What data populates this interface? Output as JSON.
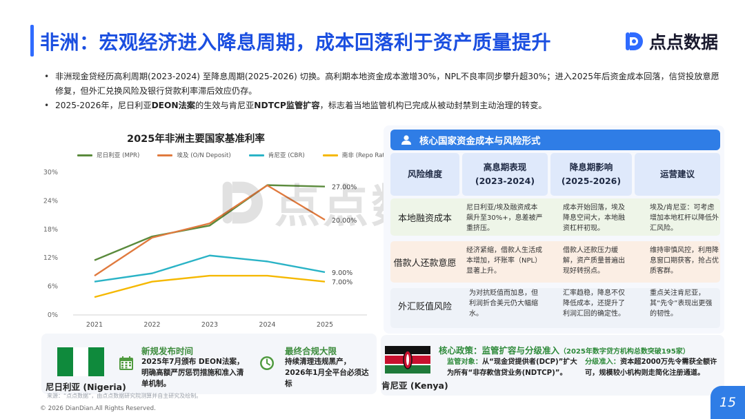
{
  "header": {
    "title": "非洲：宏观经济进入降息周期，成本回落利于资产质量提升",
    "logo_text": "点点数据",
    "accent_color": "#1b4fe0"
  },
  "bullets": [
    {
      "pre": "非洲现金贷经历高利周期(2023-2024) 至降息周期(2025-2026) 切换。高利期本地资金成本激增30%，NPL不良率同步攀升超30%；进入2025年后资金成本回落，信贷投放意愿修复，但外汇兑换风险及银行贷款利率滞后效应仍存。"
    },
    {
      "pre": "2025-2026年，尼日利亚",
      "b1": "DEON法案",
      "mid": "的生效与肯尼亚",
      "b2": "NDTCP监管扩容",
      "post": "，标志着当地监管机构已完成从被动封禁到主动治理的转变。"
    }
  ],
  "watermark": {
    "text": "点点数据"
  },
  "chart_data": {
    "type": "line",
    "title": "2025年非洲主要国家基准利率",
    "x": [
      "2021",
      "2022",
      "2023",
      "2024",
      "2025"
    ],
    "y_ticks": [
      "0%",
      "6%",
      "12%",
      "18%",
      "24%",
      "30%"
    ],
    "ylim": [
      0,
      30
    ],
    "series": [
      {
        "name": "尼日利亚 (MPR)",
        "color": "#5a8a3c",
        "values": [
          11.5,
          16.5,
          18.8,
          27.3,
          27.0
        ],
        "end_label": "27.00%"
      },
      {
        "name": "埃及 (O/N Deposit)",
        "color": "#e07a3e",
        "values": [
          8.25,
          16.25,
          19.25,
          27.25,
          20.0
        ],
        "end_label": "20.00%"
      },
      {
        "name": "肯尼亚 (CBR)",
        "color": "#2ab3c6",
        "values": [
          7.0,
          8.75,
          12.5,
          11.25,
          9.0
        ],
        "end_label": "9.00%"
      },
      {
        "name": "南非 (Repo Rate)",
        "color": "#f5b800",
        "values": [
          3.75,
          7.0,
          8.25,
          8.25,
          7.0
        ],
        "end_label": "7.00%"
      }
    ]
  },
  "risk_table": {
    "title": "核心国家资金成本与风险形式",
    "headers": [
      {
        "l1": "风险维度",
        "l2": ""
      },
      {
        "l1": "高息期表现",
        "l2": "(2023-2024)"
      },
      {
        "l1": "降息期影响",
        "l2": "(2025-2026)"
      },
      {
        "l1": "运营建议",
        "l2": ""
      }
    ],
    "rows": [
      {
        "label": "本地融资成本",
        "c1": "尼日利亚/埃及融资成本飙升至30%+，息差被严重挤压。",
        "c2": "成本开始回落，埃及降息空间大，本地融资杠杆初现。",
        "c3": "埃及/肯尼亚：可考虑增加本地杠杆以降低外汇风险。"
      },
      {
        "label": "借款人还款意愿",
        "c1": "经济紧缩，借款人生活成本增加，坏账率（NPL）显著上升。",
        "c2": "借款人还款压力缓解，资产质量普遍出现好转拐点。",
        "c3": "维持审慎风控，利用降息窗口期获客，抢占优质客群。"
      },
      {
        "label": "外汇贬值风险",
        "c1": "为对抗贬值而加息，但利润折合美元仍大幅缩水。",
        "c2": "汇率趋稳，降息不仅降低成本，还提升了利润汇回的确定性。",
        "c3": "重点关注肯尼亚，其“先令”表现出更强的韧性。"
      }
    ]
  },
  "nigeria": {
    "country": "尼日利亚 (Nigeria)",
    "release_title": "新规发布时间",
    "release_body": "2025年7月颁布 DEON法案，明确高额严厉惩罚措施和准入清单机制。",
    "deadline_title": "最终合规大限",
    "deadline_body": "持续清理违规黑产，2026年1月全平台必须达标",
    "flag_colors": [
      "#0f8a3c",
      "#ffffff",
      "#0f8a3c"
    ]
  },
  "kenya": {
    "country": "肯尼亚 (Kenya)",
    "policy_title": "核心政策：监管扩容与分级准入",
    "policy_note": "（2025年数字贷方机构总数突破195家）",
    "target_label": "监管对象：",
    "target_body": "从“现金贷提供者(DCP)”扩大为所有“非存款信贷业务(NDTCP)”。",
    "tier_label": "分级准入：",
    "tier_body": "资本超2000万先令需获全额许可，规模较小机构则走简化注册通道。"
  },
  "footer": {
    "source": "来源：“点点数据”，由点点数据研究院测算并自主研究及绘制。",
    "copyright": "© 2026 DianDian.All Rights Reserved.",
    "page_number": "15"
  }
}
